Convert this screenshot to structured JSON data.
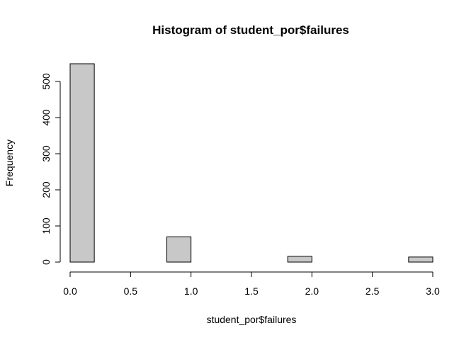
{
  "chart_data": {
    "type": "bar",
    "title": "Histogram of student_por$failures",
    "xlabel": "student_por$failures",
    "ylabel": "Frequency",
    "bins": [
      {
        "start": 0.0,
        "end": 0.2,
        "count": 549
      },
      {
        "start": 0.2,
        "end": 0.4,
        "count": 0
      },
      {
        "start": 0.4,
        "end": 0.6,
        "count": 0
      },
      {
        "start": 0.6,
        "end": 0.8,
        "count": 0
      },
      {
        "start": 0.8,
        "end": 1.0,
        "count": 70
      },
      {
        "start": 1.0,
        "end": 1.2,
        "count": 0
      },
      {
        "start": 1.2,
        "end": 1.4,
        "count": 0
      },
      {
        "start": 1.4,
        "end": 1.6,
        "count": 0
      },
      {
        "start": 1.6,
        "end": 1.8,
        "count": 0
      },
      {
        "start": 1.8,
        "end": 2.0,
        "count": 16
      },
      {
        "start": 2.0,
        "end": 2.2,
        "count": 0
      },
      {
        "start": 2.2,
        "end": 2.4,
        "count": 0
      },
      {
        "start": 2.4,
        "end": 2.6,
        "count": 0
      },
      {
        "start": 2.6,
        "end": 2.8,
        "count": 0
      },
      {
        "start": 2.8,
        "end": 3.0,
        "count": 14
      }
    ],
    "xlim": [
      0,
      3
    ],
    "ylim": [
      0,
      549
    ],
    "xticks": [
      "0.0",
      "0.5",
      "1.0",
      "1.5",
      "2.0",
      "2.5",
      "3.0"
    ],
    "yticks": [
      "0",
      "100",
      "200",
      "300",
      "400",
      "500"
    ],
    "bar_fill": "#c8c8c8",
    "bar_stroke": "#000000",
    "grid": false,
    "legend": "none"
  }
}
